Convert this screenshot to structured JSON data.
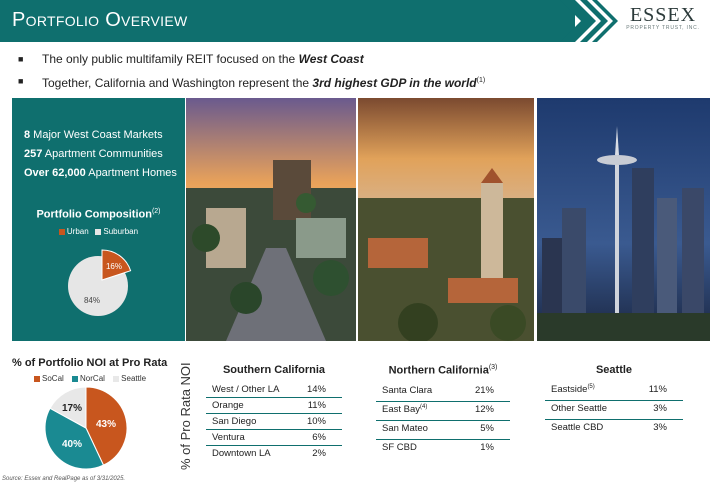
{
  "header": {
    "title": "Portfolio Overview"
  },
  "logo": {
    "name": "ESSEX",
    "tagline": "PROPERTY TRUST, INC."
  },
  "bullets": [
    {
      "text": "The only public multifamily REIT focused on the ",
      "emph": "West Coast",
      "sup": ""
    },
    {
      "text": "Together, California and Washington represent the ",
      "emph": "3rd highest GDP in the world",
      "sup": "(1)"
    }
  ],
  "stats": [
    {
      "num": "8",
      "label": " Major West Coast Markets"
    },
    {
      "num": "257",
      "label": " Apartment Communities"
    },
    {
      "num": "Over 62,000",
      "label": " Apartment Homes"
    }
  ],
  "composition": {
    "title": "Portfolio Composition",
    "sup": "(2)",
    "legend": [
      {
        "label": "Urban",
        "color": "#c8561e"
      },
      {
        "label": "Suburban",
        "color": "#e6e6e6"
      }
    ],
    "labels": {
      "urban": "16%",
      "suburban": "84%"
    }
  },
  "noi": {
    "title": "% of Portfolio NOI at Pro Rata",
    "legend": [
      {
        "label": "SoCal",
        "color": "#c8561e"
      },
      {
        "label": "NorCal",
        "color": "#1a8a92"
      },
      {
        "label": "Seattle",
        "color": "#e8e8e8"
      }
    ],
    "labels": {
      "socal": "43%",
      "norcal": "40%",
      "seattle": "17%"
    }
  },
  "axis_label": "% of Pro Rata NOI",
  "regions": {
    "southern": {
      "title": "Southern California",
      "sup": "",
      "rows": [
        {
          "name": "West / Other LA",
          "sup": "",
          "value": "14%"
        },
        {
          "name": "Orange",
          "sup": "",
          "value": "11%"
        },
        {
          "name": "San Diego",
          "sup": "",
          "value": "10%"
        },
        {
          "name": "Ventura",
          "sup": "",
          "value": "6%"
        },
        {
          "name": "Downtown LA",
          "sup": "",
          "value": "2%"
        }
      ]
    },
    "northern": {
      "title": "Northern California",
      "sup": "(3)",
      "rows": [
        {
          "name": "Santa Clara",
          "sup": "",
          "value": "21%"
        },
        {
          "name": "East Bay",
          "sup": "(4)",
          "value": "12%"
        },
        {
          "name": "San Mateo",
          "sup": "",
          "value": "5%"
        },
        {
          "name": "SF CBD",
          "sup": "",
          "value": "1%"
        }
      ]
    },
    "seattle": {
      "title": "Seattle",
      "sup": "",
      "rows": [
        {
          "name": "Eastside",
          "sup": "(5)",
          "value": "11%"
        },
        {
          "name": "Other Seattle",
          "sup": "",
          "value": "3%"
        },
        {
          "name": "Seattle CBD",
          "sup": "",
          "value": "3%"
        }
      ]
    }
  },
  "source": "Source: Essex and RealPage as of 3/31/2025."
}
